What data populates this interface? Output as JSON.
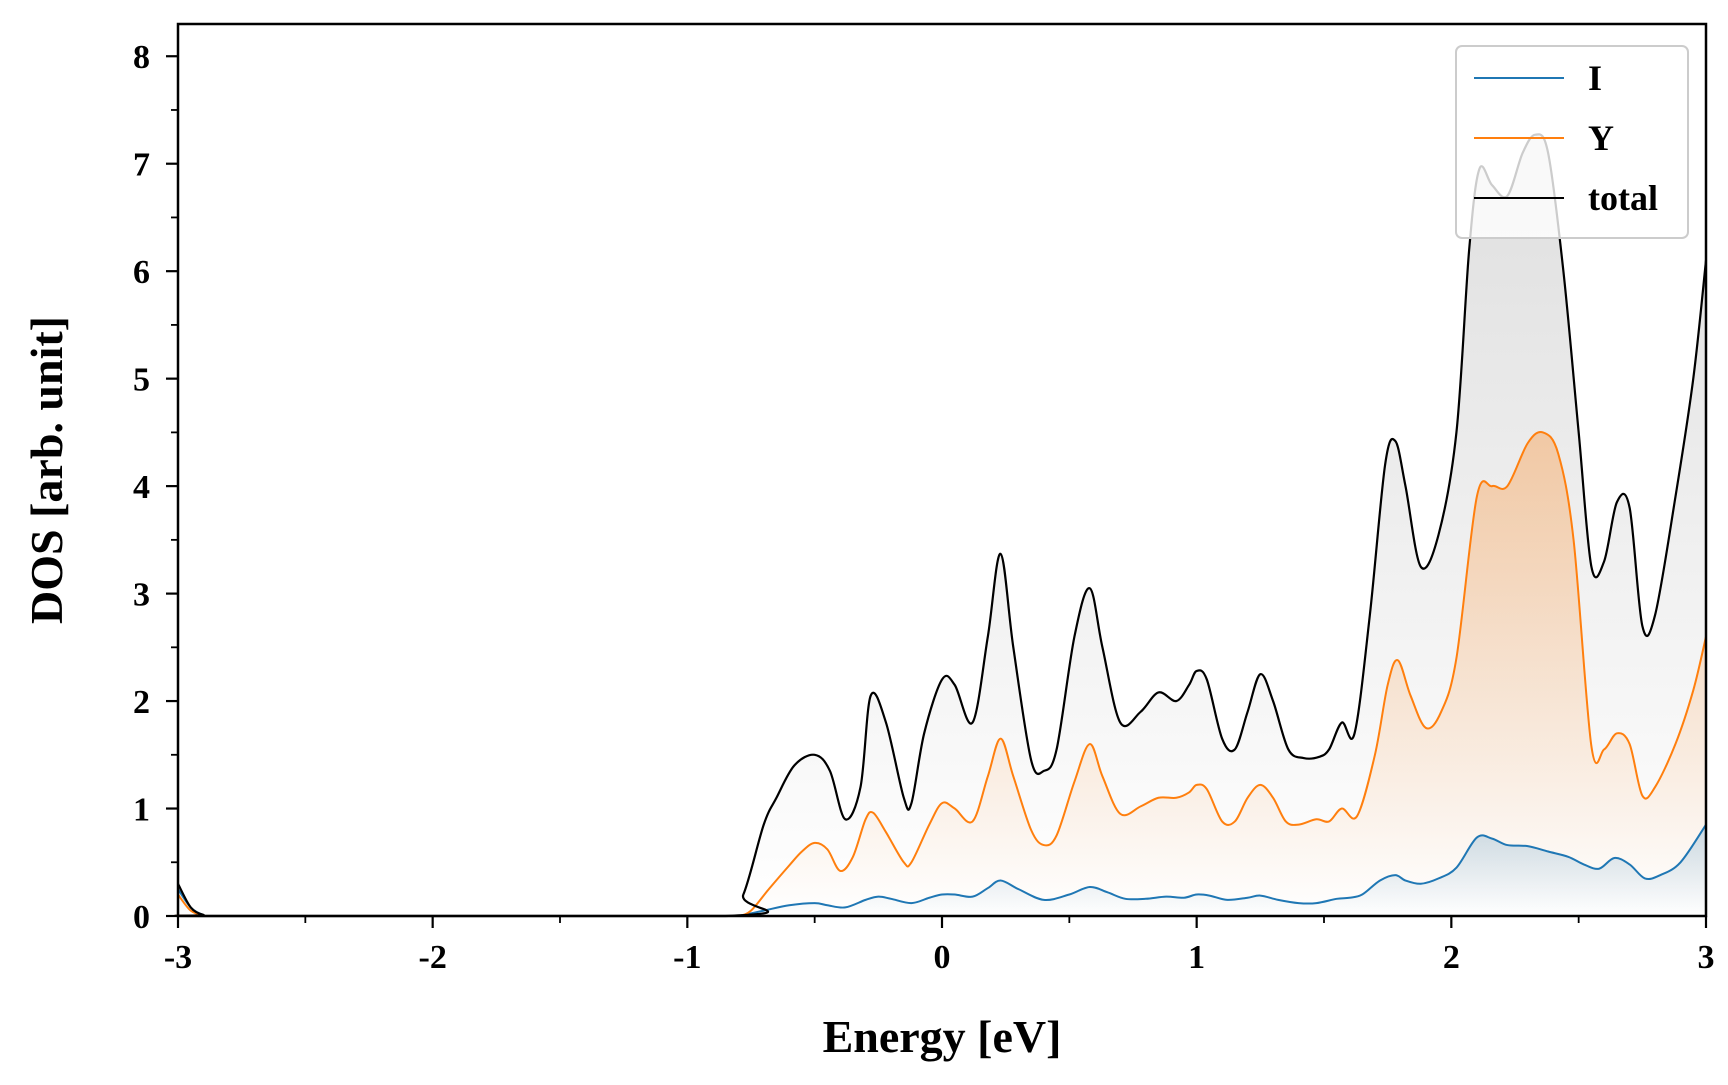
{
  "chart_data": {
    "type": "line",
    "title": "",
    "xlabel": "Energy [eV]",
    "ylabel": "DOS [arb. unit]",
    "xlim": [
      -3,
      3
    ],
    "ylim": [
      0,
      8.3
    ],
    "xticks": [
      -3,
      -2,
      -1,
      0,
      1,
      2,
      3
    ],
    "xtick_labels": [
      "-3",
      "-2",
      "-1",
      "0",
      "1",
      "2",
      "3"
    ],
    "yticks": [
      0,
      1,
      2,
      3,
      4,
      5,
      6,
      7,
      8
    ],
    "ytick_labels": [
      "0",
      "1",
      "2",
      "3",
      "4",
      "5",
      "6",
      "7",
      "8"
    ],
    "grid": false,
    "legend_position": "top-right",
    "filled_under_curves": true,
    "series": [
      {
        "name": "I",
        "color": "#1f77b4",
        "x": [
          -3.0,
          -2.95,
          -2.9,
          -2.85,
          -0.85,
          -0.8,
          -0.7,
          -0.6,
          -0.5,
          -0.45,
          -0.38,
          -0.3,
          -0.25,
          -0.2,
          -0.12,
          -0.05,
          0.0,
          0.05,
          0.12,
          0.18,
          0.23,
          0.3,
          0.4,
          0.5,
          0.58,
          0.65,
          0.72,
          0.8,
          0.88,
          0.95,
          1.0,
          1.05,
          1.12,
          1.2,
          1.25,
          1.32,
          1.4,
          1.47,
          1.55,
          1.6,
          1.65,
          1.72,
          1.78,
          1.82,
          1.88,
          1.95,
          2.02,
          2.1,
          2.16,
          2.22,
          2.3,
          2.38,
          2.46,
          2.52,
          2.58,
          2.64,
          2.7,
          2.76,
          2.82,
          2.9,
          3.0
        ],
        "y": [
          0.25,
          0.08,
          0.01,
          0.0,
          0.0,
          0.0,
          0.05,
          0.1,
          0.12,
          0.1,
          0.08,
          0.15,
          0.18,
          0.16,
          0.12,
          0.17,
          0.2,
          0.2,
          0.18,
          0.26,
          0.33,
          0.25,
          0.15,
          0.2,
          0.27,
          0.22,
          0.16,
          0.16,
          0.18,
          0.17,
          0.2,
          0.19,
          0.15,
          0.17,
          0.19,
          0.15,
          0.12,
          0.12,
          0.16,
          0.17,
          0.2,
          0.33,
          0.38,
          0.33,
          0.3,
          0.35,
          0.45,
          0.73,
          0.72,
          0.66,
          0.65,
          0.6,
          0.55,
          0.48,
          0.44,
          0.54,
          0.48,
          0.35,
          0.38,
          0.5,
          0.85
        ]
      },
      {
        "name": "Y",
        "color": "#ff7f0e",
        "x": [
          -3.0,
          -2.95,
          -2.9,
          -2.85,
          -0.85,
          -0.8,
          -0.75,
          -0.68,
          -0.6,
          -0.55,
          -0.5,
          -0.45,
          -0.4,
          -0.35,
          -0.3,
          -0.27,
          -0.22,
          -0.15,
          -0.12,
          -0.05,
          0.0,
          0.05,
          0.12,
          0.18,
          0.23,
          0.28,
          0.35,
          0.4,
          0.45,
          0.52,
          0.58,
          0.63,
          0.7,
          0.78,
          0.85,
          0.92,
          0.97,
          1.0,
          1.04,
          1.1,
          1.15,
          1.2,
          1.25,
          1.3,
          1.35,
          1.4,
          1.47,
          1.52,
          1.57,
          1.63,
          1.7,
          1.75,
          1.79,
          1.84,
          1.9,
          1.96,
          2.02,
          2.1,
          2.16,
          2.22,
          2.3,
          2.36,
          2.42,
          2.48,
          2.55,
          2.6,
          2.65,
          2.7,
          2.75,
          2.8,
          2.88,
          2.95,
          3.0
        ],
        "y": [
          0.2,
          0.05,
          0.01,
          0.0,
          0.0,
          0.0,
          0.05,
          0.25,
          0.47,
          0.6,
          0.68,
          0.62,
          0.42,
          0.55,
          0.9,
          0.96,
          0.78,
          0.5,
          0.5,
          0.85,
          1.05,
          1.0,
          0.88,
          1.3,
          1.65,
          1.3,
          0.8,
          0.66,
          0.75,
          1.25,
          1.6,
          1.3,
          0.95,
          1.02,
          1.1,
          1.1,
          1.15,
          1.22,
          1.18,
          0.88,
          0.88,
          1.1,
          1.22,
          1.1,
          0.88,
          0.85,
          0.9,
          0.88,
          1.0,
          0.93,
          1.5,
          2.15,
          2.38,
          2.05,
          1.75,
          1.9,
          2.4,
          3.9,
          4.0,
          4.0,
          4.4,
          4.5,
          4.3,
          3.5,
          1.58,
          1.55,
          1.7,
          1.6,
          1.12,
          1.2,
          1.6,
          2.1,
          2.6
        ]
      },
      {
        "name": "total",
        "color": "#000000",
        "x": [
          -3.0,
          -2.95,
          -2.9,
          -2.85,
          -0.85,
          -0.78,
          -0.7,
          -0.65,
          -0.58,
          -0.5,
          -0.44,
          -0.38,
          -0.32,
          -0.28,
          -0.22,
          -0.15,
          -0.12,
          -0.07,
          0.0,
          0.05,
          0.12,
          0.18,
          0.23,
          0.28,
          0.35,
          0.4,
          0.45,
          0.52,
          0.58,
          0.63,
          0.7,
          0.78,
          0.85,
          0.92,
          0.97,
          1.0,
          1.04,
          1.1,
          1.15,
          1.2,
          1.25,
          1.3,
          1.36,
          1.42,
          1.48,
          1.52,
          1.57,
          1.62,
          1.68,
          1.74,
          1.78,
          1.82,
          1.88,
          1.95,
          2.02,
          2.07,
          2.11,
          2.16,
          2.22,
          2.28,
          2.33,
          2.38,
          2.44,
          2.5,
          2.55,
          2.6,
          2.65,
          2.7,
          2.75,
          2.8,
          2.88,
          2.95,
          3.0
        ],
        "y": [
          0.3,
          0.08,
          0.01,
          0.0,
          0.0,
          0.2,
          0.85,
          1.1,
          1.4,
          1.5,
          1.35,
          0.9,
          1.2,
          2.05,
          1.8,
          1.1,
          1.05,
          1.7,
          2.2,
          2.15,
          1.8,
          2.6,
          3.37,
          2.5,
          1.45,
          1.35,
          1.55,
          2.6,
          3.05,
          2.5,
          1.8,
          1.9,
          2.08,
          2.0,
          2.15,
          2.28,
          2.2,
          1.65,
          1.55,
          1.9,
          2.25,
          2.0,
          1.55,
          1.47,
          1.48,
          1.55,
          1.8,
          1.7,
          2.8,
          4.2,
          4.42,
          4.0,
          3.25,
          3.55,
          4.5,
          6.2,
          6.95,
          6.8,
          6.7,
          7.1,
          7.27,
          7.1,
          6.0,
          4.5,
          3.25,
          3.3,
          3.85,
          3.8,
          2.7,
          2.8,
          3.9,
          5.0,
          6.1
        ]
      }
    ]
  }
}
